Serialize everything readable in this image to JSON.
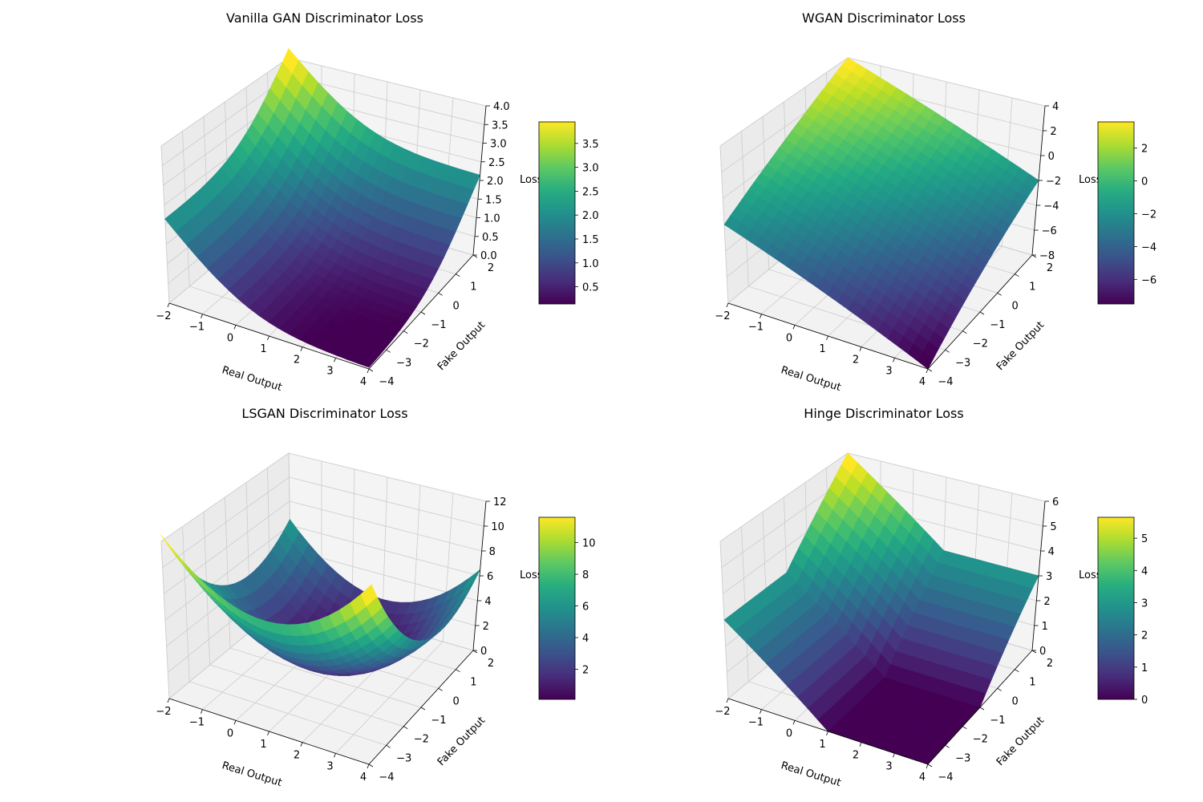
{
  "chart_data": [
    {
      "type": "surface",
      "title": "Vanilla GAN Discriminator Loss",
      "loss_formula": "-log(sigmoid(real)) - log(1 - sigmoid(fake))",
      "xlabel": "Real Output",
      "ylabel": "Fake Output",
      "zlabel": "Loss",
      "x_range": [
        -2,
        4
      ],
      "y_range": [
        -4,
        2
      ],
      "zlim": [
        0.0,
        4.0
      ],
      "x_ticks": [
        "−2",
        "−1",
        "0",
        "1",
        "2",
        "3",
        "4"
      ],
      "y_ticks": [
        "−4",
        "−3",
        "−2",
        "−1",
        "0",
        "1",
        "2"
      ],
      "z_ticks": [
        "0.0",
        "0.5",
        "1.0",
        "1.5",
        "2.0",
        "2.5",
        "3.0",
        "3.5",
        "4.0"
      ],
      "colorbar_range": [
        0.14,
        3.95
      ],
      "colorbar_ticks": [
        "0.5",
        "1.0",
        "1.5",
        "2.0",
        "2.5",
        "3.0",
        "3.5"
      ],
      "colormap": "viridis",
      "grid": true
    },
    {
      "type": "surface",
      "title": "WGAN Discriminator Loss",
      "loss_formula": "fake - real",
      "xlabel": "Real Output",
      "ylabel": "Fake Output",
      "zlabel": "Loss",
      "x_range": [
        -2,
        4
      ],
      "y_range": [
        -4,
        2
      ],
      "zlim": [
        -8,
        4
      ],
      "x_ticks": [
        "−2",
        "−1",
        "0",
        "1",
        "2",
        "3",
        "4"
      ],
      "y_ticks": [
        "−4",
        "−3",
        "−2",
        "−1",
        "0",
        "1",
        "2"
      ],
      "z_ticks": [
        "−8",
        "−6",
        "−4",
        "−2",
        "0",
        "2",
        "4"
      ],
      "colorbar_range": [
        -7.5,
        3.6
      ],
      "colorbar_ticks": [
        "−6",
        "−4",
        "−2",
        "0",
        "2"
      ],
      "colormap": "viridis",
      "grid": true
    },
    {
      "type": "surface",
      "title": "LSGAN Discriminator Loss",
      "loss_formula": "0.5*(real - 1)^2 + 0.5*fake^2",
      "xlabel": "Real Output",
      "ylabel": "Fake Output",
      "zlabel": "Loss",
      "x_range": [
        -2,
        4
      ],
      "y_range": [
        -4,
        2
      ],
      "zlim": [
        0,
        12
      ],
      "x_ticks": [
        "−2",
        "−1",
        "0",
        "1",
        "2",
        "3",
        "4"
      ],
      "y_ticks": [
        "−4",
        "−3",
        "−2",
        "−1",
        "0",
        "1",
        "2"
      ],
      "z_ticks": [
        "0",
        "2",
        "4",
        "6",
        "8",
        "10",
        "12"
      ],
      "colorbar_range": [
        0.1,
        11.6
      ],
      "colorbar_ticks": [
        "2",
        "4",
        "6",
        "8",
        "10"
      ],
      "colormap": "viridis",
      "grid": true
    },
    {
      "type": "surface",
      "title": "Hinge Discriminator Loss",
      "loss_formula": "max(0, 1 - real) + max(0, 1 + fake)",
      "xlabel": "Real Output",
      "ylabel": "Fake Output",
      "zlabel": "Loss",
      "x_range": [
        -2,
        4
      ],
      "y_range": [
        -4,
        2
      ],
      "zlim": [
        0,
        6
      ],
      "x_ticks": [
        "−2",
        "−1",
        "0",
        "1",
        "2",
        "3",
        "4"
      ],
      "y_ticks": [
        "−4",
        "−3",
        "−2",
        "−1",
        "0",
        "1",
        "2"
      ],
      "z_ticks": [
        "0",
        "1",
        "2",
        "3",
        "4",
        "5",
        "6"
      ],
      "colorbar_range": [
        0,
        5.65
      ],
      "colorbar_ticks": [
        "0",
        "1",
        "2",
        "3",
        "4",
        "5"
      ],
      "colormap": "viridis",
      "grid": true
    }
  ]
}
